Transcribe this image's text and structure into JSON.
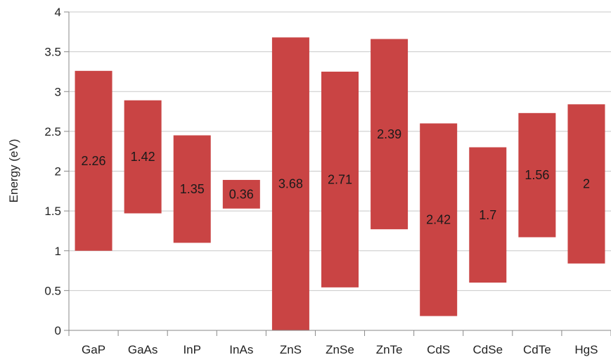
{
  "chart_data": {
    "type": "bar",
    "subtype": "floating-range",
    "title": "",
    "xlabel": "",
    "ylabel": "Energy (eV)",
    "ylim": [
      0,
      4
    ],
    "yticks": [
      "0",
      "0.5",
      "1",
      "1.5",
      "2",
      "2.5",
      "3",
      "3.5",
      "4"
    ],
    "grid": "horizontal",
    "legend": "none",
    "bar_color": "#c94444",
    "categories": [
      "GaP",
      "GaAs",
      "InP",
      "InAs",
      "ZnS",
      "ZnSe",
      "ZnTe",
      "CdS",
      "CdSe",
      "CdTe",
      "HgS"
    ],
    "bars": [
      {
        "category": "GaP",
        "low": 1.0,
        "high": 3.26,
        "label": "2.26"
      },
      {
        "category": "GaAs",
        "low": 1.47,
        "high": 2.89,
        "label": "1.42"
      },
      {
        "category": "InP",
        "low": 1.1,
        "high": 2.45,
        "label": "1.35"
      },
      {
        "category": "InAs",
        "low": 1.53,
        "high": 1.89,
        "label": "0.36"
      },
      {
        "category": "ZnS",
        "low": 0.0,
        "high": 3.68,
        "label": "3.68"
      },
      {
        "category": "ZnSe",
        "low": 0.54,
        "high": 3.25,
        "label": "2.71"
      },
      {
        "category": "ZnTe",
        "low": 1.27,
        "high": 3.66,
        "label": "2.39"
      },
      {
        "category": "CdS",
        "low": 0.18,
        "high": 2.6,
        "label": "2.42"
      },
      {
        "category": "CdSe",
        "low": 0.6,
        "high": 2.3,
        "label": "1.7"
      },
      {
        "category": "CdTe",
        "low": 1.17,
        "high": 2.73,
        "label": "1.56"
      },
      {
        "category": "HgS",
        "low": 0.84,
        "high": 2.84,
        "label": "2"
      }
    ]
  }
}
